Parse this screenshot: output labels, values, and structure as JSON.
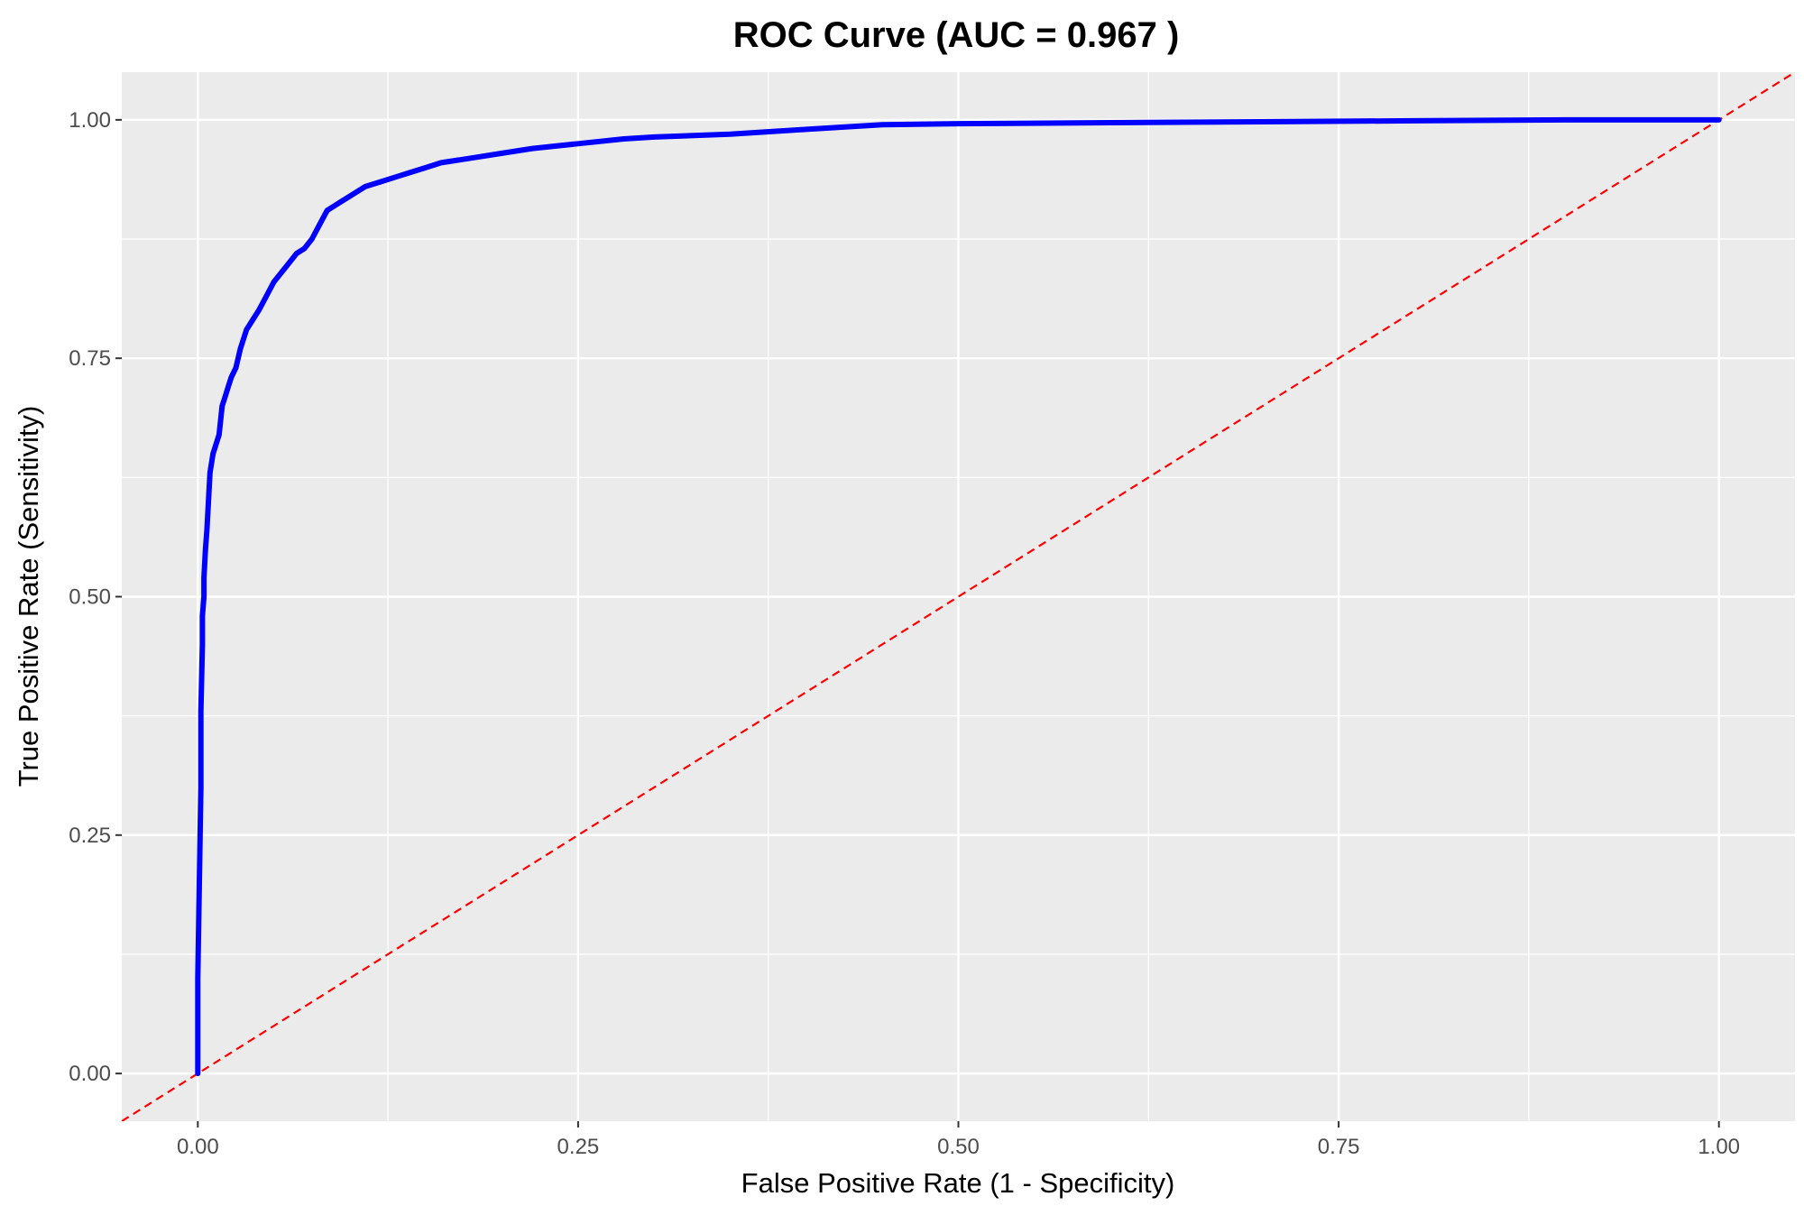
{
  "chart_data": {
    "type": "line",
    "title": "ROC Curve (AUC = 0.967 )",
    "xlabel": "False Positive Rate (1 - Specificity)",
    "ylabel": "True Positive Rate (Sensitivity)",
    "xlim": [
      -0.05,
      1.05
    ],
    "ylim": [
      -0.05,
      1.05
    ],
    "x_ticks": [
      0.0,
      0.25,
      0.5,
      0.75,
      1.0
    ],
    "x_tick_labels": [
      "0.00",
      "0.25",
      "0.50",
      "0.75",
      "1.00"
    ],
    "y_ticks": [
      0.0,
      0.25,
      0.5,
      0.75,
      1.0
    ],
    "y_tick_labels": [
      "0.00",
      "0.25",
      "0.50",
      "0.75",
      "1.00"
    ],
    "grid": true,
    "background": "#ebebeb",
    "series": [
      {
        "style": "solid",
        "color": "#0000ff",
        "x": [
          0.0,
          0.0,
          0.001,
          0.002,
          0.002,
          0.003,
          0.003,
          0.004,
          0.004,
          0.005,
          0.006,
          0.007,
          0.008,
          0.01,
          0.012,
          0.014,
          0.016,
          0.018,
          0.02,
          0.022,
          0.025,
          0.028,
          0.032,
          0.036,
          0.04,
          0.045,
          0.05,
          0.055,
          0.06,
          0.065,
          0.07,
          0.075,
          0.08,
          0.085,
          0.09,
          0.095,
          0.1,
          0.11,
          0.12,
          0.13,
          0.14,
          0.15,
          0.16,
          0.18,
          0.2,
          0.22,
          0.25,
          0.28,
          0.3,
          0.35,
          0.4,
          0.45,
          0.5,
          0.6,
          0.7,
          0.8,
          0.9,
          1.0
        ],
        "y": [
          0.0,
          0.1,
          0.2,
          0.3,
          0.38,
          0.45,
          0.48,
          0.5,
          0.52,
          0.55,
          0.57,
          0.6,
          0.63,
          0.65,
          0.66,
          0.67,
          0.7,
          0.71,
          0.72,
          0.73,
          0.74,
          0.76,
          0.78,
          0.79,
          0.8,
          0.815,
          0.83,
          0.84,
          0.85,
          0.86,
          0.865,
          0.875,
          0.89,
          0.905,
          0.91,
          0.915,
          0.92,
          0.93,
          0.935,
          0.94,
          0.945,
          0.95,
          0.955,
          0.96,
          0.965,
          0.97,
          0.975,
          0.98,
          0.982,
          0.985,
          0.99,
          0.995,
          0.996,
          0.997,
          0.998,
          0.999,
          1.0,
          1.0
        ]
      },
      {
        "style": "dashed",
        "color": "#ff0000",
        "x": [
          -0.05,
          1.05
        ],
        "y": [
          -0.05,
          1.05
        ]
      }
    ]
  }
}
